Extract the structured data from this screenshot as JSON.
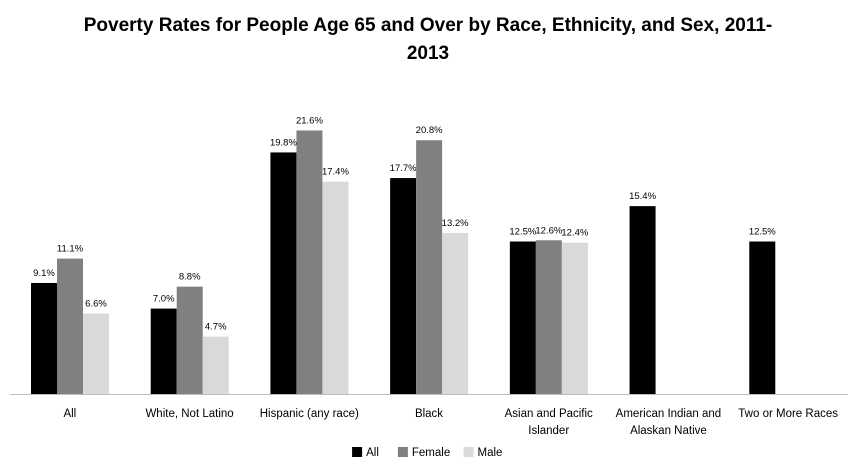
{
  "chart_data": {
    "type": "bar",
    "title": "Poverty Rates for People Age 65 and Over by Race, Ethnicity, and Sex, 2011-2013",
    "title_lines": [
      "Poverty Rates for People Age 65 and Over by Race, Ethnicity, and Sex, 2011-",
      "2013"
    ],
    "categories": [
      [
        "All"
      ],
      [
        "White, Not Latino"
      ],
      [
        "Hispanic (any race)"
      ],
      [
        "Black"
      ],
      [
        "Asian and Pacific",
        "Islander"
      ],
      [
        "American Indian and",
        "Alaskan Native"
      ],
      [
        "Two or More Races"
      ]
    ],
    "series": [
      {
        "name": "All",
        "color": "#000000",
        "values": [
          9.1,
          7.0,
          19.8,
          17.7,
          12.5,
          15.4,
          12.5
        ],
        "labels": [
          "9.1%",
          "7.0%",
          "19.8%",
          "17.7%",
          "12.5%",
          "15.4%",
          "12.5%"
        ]
      },
      {
        "name": "Female",
        "color": "#808080",
        "values": [
          11.1,
          8.8,
          21.6,
          20.8,
          12.6,
          null,
          null
        ],
        "labels": [
          "11.1%",
          "8.8%",
          "21.6%",
          "20.8%",
          "12.6%",
          null,
          null
        ]
      },
      {
        "name": "Male",
        "color": "#d9d9d9",
        "values": [
          6.6,
          4.7,
          17.4,
          13.2,
          12.4,
          null,
          null
        ],
        "labels": [
          "6.6%",
          "4.7%",
          "17.4%",
          "13.2%",
          "12.4%",
          null,
          null
        ]
      }
    ],
    "xlabel": "",
    "ylabel": "",
    "ylim": [
      0,
      23
    ],
    "grid": false,
    "legend_position": "bottom"
  }
}
